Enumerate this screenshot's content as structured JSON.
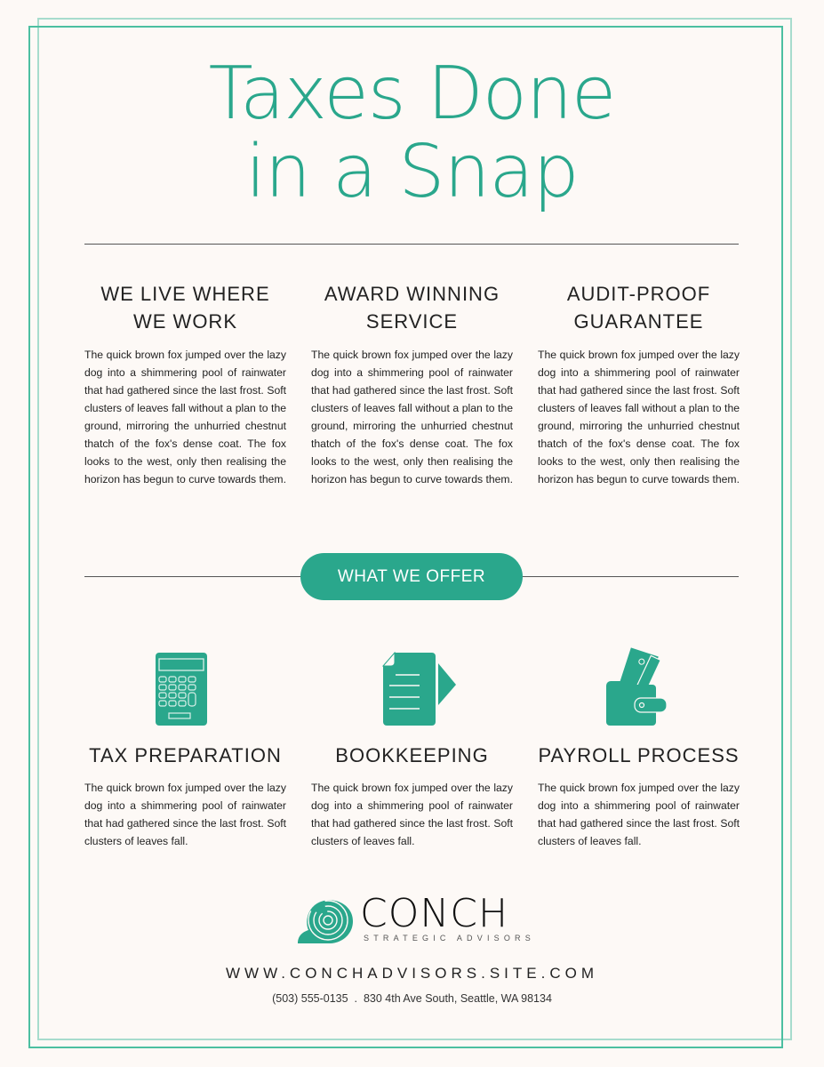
{
  "title_line1": "Taxes Done",
  "title_line2": "in a Snap",
  "features": [
    {
      "heading_line1": "WE LIVE WHERE",
      "heading_line2": "WE WORK",
      "body": "The quick brown fox jumped over the lazy dog into a shimmering pool of rainwater that had gathered since the last frost. Soft clusters of leaves fall without a plan to the ground, mirroring the unhurried chestnut thatch of the fox's dense coat. The fox looks to the west, only then realising the horizon has begun to curve towards them."
    },
    {
      "heading_line1": "AWARD WINNING",
      "heading_line2": "SERVICE",
      "body": "The quick brown fox jumped over the lazy dog into a shimmering pool of rainwater that had gathered since the last frost. Soft clusters of leaves fall without a plan to the ground, mirroring the unhurried chestnut thatch of the fox's dense coat. The fox looks to the west, only then realising the horizon has begun to curve towards them."
    },
    {
      "heading_line1": "AUDIT-PROOF",
      "heading_line2": "GUARANTEE",
      "body": "The quick brown fox jumped over the lazy dog into a shimmering pool of rainwater that had gathered since the last frost. Soft clusters of leaves fall without a plan to the ground, mirroring the unhurried chestnut thatch of the fox's dense coat. The fox looks to the west, only then realising the horizon has begun to curve towards them."
    }
  ],
  "offer_label": "WHAT WE OFFER",
  "services": [
    {
      "icon": "calculator-icon",
      "heading": "TAX PREPARATION",
      "body": "The quick brown fox jumped over the lazy dog into a shimmering pool of rainwater that had gathered since the last frost. Soft clusters of leaves fall."
    },
    {
      "icon": "document-icon",
      "heading": "BOOKKEEPING",
      "body": "The quick brown fox jumped over the lazy dog into a shimmering pool of rainwater that had gathered since the last frost. Soft clusters of leaves fall."
    },
    {
      "icon": "wallet-icon",
      "heading": "PAYROLL PROCESS",
      "body": "The quick brown fox jumped over the lazy dog into a shimmering pool of rainwater that had gathered since the last frost. Soft clusters of leaves fall."
    }
  ],
  "logo": {
    "name": "CONCH",
    "tagline": "STRATEGIC ADVISORS"
  },
  "website": "WWW.CONCHADVISORS.SITE.COM",
  "contact": "(503) 555-0135  .  830 4th Ave South, Seattle, WA 98134",
  "colors": {
    "accent": "#2aa78c",
    "background": "#fdf9f6"
  }
}
